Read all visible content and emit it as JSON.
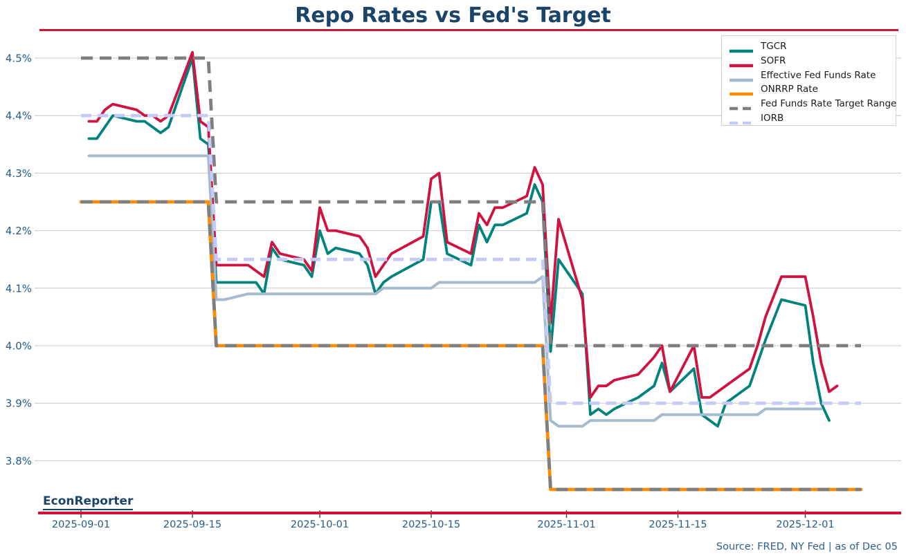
{
  "title": "Repo Rates vs Fed's Target",
  "branding": "EconReporter",
  "source_note": "Source: FRED, NY Fed | as of Dec 05",
  "colors": {
    "title": "#1b4469",
    "accent_red": "#d01335",
    "tick_label": "#265a87",
    "axis_tick": "#3d3d3d",
    "grid": "#c9c9c9",
    "legend_border": "#d2d2d2",
    "legend_text": "#1a1a1a",
    "source_text": "#2d5f8e",
    "brand_text": "#1b4469"
  },
  "chart_data": {
    "type": "line",
    "title": "Repo Rates vs Fed's Target",
    "xlabel": "",
    "ylabel": "",
    "grid": true,
    "legend_position": "top-right",
    "x_axis": {
      "epoch": "2025-09-01",
      "range": [
        "2025-08-28",
        "2025-12-10"
      ],
      "ticks": [
        {
          "date": "2025-09-01",
          "label": "2025-09-01"
        },
        {
          "date": "2025-09-15",
          "label": "2025-09-15"
        },
        {
          "date": "2025-10-01",
          "label": "2025-10-01"
        },
        {
          "date": "2025-10-15",
          "label": "2025-10-15"
        },
        {
          "date": "2025-11-01",
          "label": "2025-11-01"
        },
        {
          "date": "2025-11-15",
          "label": "2025-11-15"
        },
        {
          "date": "2025-12-01",
          "label": "2025-12-01"
        }
      ]
    },
    "y_axis": {
      "unit": "%",
      "range": [
        3.72,
        4.55
      ],
      "tick_values": [
        4.5,
        4.4,
        4.3,
        4.2,
        4.1,
        4.0,
        3.9,
        3.8
      ],
      "tick_labels": [
        "4.5%",
        "4.4%",
        "4.3%",
        "4.2%",
        "4.1%",
        "4.0%",
        "3.9%",
        "3.8%"
      ]
    },
    "series": [
      {
        "name": "TGCR",
        "color": "#00837d",
        "style": "solid",
        "width": 3.8,
        "dash": null,
        "paths": [
          {
            "dates": [
              "2025-09-02",
              "2025-09-03",
              "2025-09-04",
              "2025-09-05",
              "2025-09-08",
              "2025-09-09",
              "2025-09-10",
              "2025-09-11",
              "2025-09-12",
              "2025-09-15",
              "2025-09-16",
              "2025-09-17",
              "2025-09-18",
              "2025-09-19",
              "2025-09-22",
              "2025-09-23",
              "2025-09-24",
              "2025-09-25",
              "2025-09-26",
              "2025-09-29",
              "2025-09-30",
              "2025-10-01",
              "2025-10-02",
              "2025-10-03",
              "2025-10-06",
              "2025-10-07",
              "2025-10-08",
              "2025-10-09",
              "2025-10-10",
              "2025-10-14",
              "2025-10-15",
              "2025-10-16",
              "2025-10-17",
              "2025-10-20",
              "2025-10-21",
              "2025-10-22",
              "2025-10-23",
              "2025-10-24",
              "2025-10-27",
              "2025-10-28",
              "2025-10-29",
              "2025-10-30",
              "2025-10-31",
              "2025-11-03",
              "2025-11-04",
              "2025-11-05",
              "2025-11-06",
              "2025-11-07",
              "2025-11-10",
              "2025-11-12",
              "2025-11-13",
              "2025-11-14",
              "2025-11-17",
              "2025-11-18",
              "2025-11-19",
              "2025-11-20",
              "2025-11-21",
              "2025-11-24",
              "2025-11-25",
              "2025-11-26",
              "2025-11-28",
              "2025-12-01",
              "2025-12-02",
              "2025-12-03",
              "2025-12-04"
            ],
            "values": [
              4.36,
              4.36,
              4.38,
              4.4,
              4.39,
              4.39,
              4.38,
              4.37,
              4.38,
              4.5,
              4.36,
              4.35,
              4.11,
              4.11,
              4.11,
              4.11,
              4.09,
              4.17,
              4.15,
              4.14,
              4.12,
              4.2,
              4.16,
              4.17,
              4.16,
              4.14,
              4.09,
              4.11,
              4.12,
              4.15,
              4.25,
              4.25,
              4.16,
              4.14,
              4.21,
              4.18,
              4.21,
              4.21,
              4.23,
              4.28,
              4.25,
              3.99,
              4.15,
              4.09,
              3.88,
              3.89,
              3.88,
              3.89,
              3.91,
              3.93,
              3.97,
              3.92,
              3.96,
              3.88,
              3.87,
              3.86,
              3.9,
              3.93,
              3.97,
              4.01,
              4.08,
              4.07,
              3.97,
              3.9,
              3.87
            ]
          }
        ]
      },
      {
        "name": "SOFR",
        "color": "#cf1240",
        "style": "solid",
        "width": 3.8,
        "dash": null,
        "paths": [
          {
            "dates": [
              "2025-09-02",
              "2025-09-03",
              "2025-09-04",
              "2025-09-05",
              "2025-09-08",
              "2025-09-09",
              "2025-09-10",
              "2025-09-11",
              "2025-09-12",
              "2025-09-15",
              "2025-09-16",
              "2025-09-17",
              "2025-09-18",
              "2025-09-19",
              "2025-09-22",
              "2025-09-23",
              "2025-09-24",
              "2025-09-25",
              "2025-09-26",
              "2025-09-29",
              "2025-09-30",
              "2025-10-01",
              "2025-10-02",
              "2025-10-03",
              "2025-10-06",
              "2025-10-07",
              "2025-10-08",
              "2025-10-09",
              "2025-10-10",
              "2025-10-14",
              "2025-10-15",
              "2025-10-16",
              "2025-10-17",
              "2025-10-20",
              "2025-10-21",
              "2025-10-22",
              "2025-10-23",
              "2025-10-24",
              "2025-10-27",
              "2025-10-28",
              "2025-10-29",
              "2025-10-30",
              "2025-10-31",
              "2025-11-03",
              "2025-11-04",
              "2025-11-05",
              "2025-11-06",
              "2025-11-07",
              "2025-11-10",
              "2025-11-12",
              "2025-11-13",
              "2025-11-14",
              "2025-11-17",
              "2025-11-18",
              "2025-11-19",
              "2025-11-20",
              "2025-11-21",
              "2025-11-24",
              "2025-11-25",
              "2025-11-26",
              "2025-11-28",
              "2025-12-01",
              "2025-12-02",
              "2025-12-03",
              "2025-12-04",
              "2025-12-05"
            ],
            "values": [
              4.39,
              4.39,
              4.41,
              4.42,
              4.41,
              4.4,
              4.4,
              4.39,
              4.4,
              4.51,
              4.39,
              4.38,
              4.14,
              4.14,
              4.14,
              4.13,
              4.12,
              4.18,
              4.16,
              4.15,
              4.13,
              4.24,
              4.2,
              4.2,
              4.19,
              4.17,
              4.12,
              4.14,
              4.16,
              4.19,
              4.29,
              4.3,
              4.18,
              4.16,
              4.23,
              4.21,
              4.24,
              4.24,
              4.26,
              4.31,
              4.28,
              4.04,
              4.22,
              4.08,
              3.91,
              3.93,
              3.93,
              3.94,
              3.95,
              3.98,
              4.0,
              3.92,
              4.0,
              3.91,
              3.91,
              3.92,
              3.93,
              3.96,
              4.0,
              4.05,
              4.12,
              4.12,
              4.05,
              3.97,
              3.92,
              3.93
            ]
          }
        ]
      },
      {
        "name": "Effective Fed Funds Rate",
        "color": "#a5bacc",
        "style": "solid",
        "width": 4,
        "dash": null,
        "paths": [
          {
            "dates": [
              "2025-09-02",
              "2025-09-03",
              "2025-09-04",
              "2025-09-05",
              "2025-09-08",
              "2025-09-09",
              "2025-09-10",
              "2025-09-11",
              "2025-09-12",
              "2025-09-15",
              "2025-09-16",
              "2025-09-17",
              "2025-09-18",
              "2025-09-19",
              "2025-09-22",
              "2025-09-23",
              "2025-09-24",
              "2025-09-25",
              "2025-09-26",
              "2025-09-29",
              "2025-09-30",
              "2025-10-01",
              "2025-10-02",
              "2025-10-03",
              "2025-10-06",
              "2025-10-07",
              "2025-10-08",
              "2025-10-09",
              "2025-10-10",
              "2025-10-14",
              "2025-10-15",
              "2025-10-16",
              "2025-10-17",
              "2025-10-20",
              "2025-10-21",
              "2025-10-22",
              "2025-10-23",
              "2025-10-24",
              "2025-10-27",
              "2025-10-28",
              "2025-10-29",
              "2025-10-30",
              "2025-10-31",
              "2025-11-03",
              "2025-11-04",
              "2025-11-05",
              "2025-11-06",
              "2025-11-07",
              "2025-11-10",
              "2025-11-12",
              "2025-11-13",
              "2025-11-14",
              "2025-11-17",
              "2025-11-18",
              "2025-11-19",
              "2025-11-20",
              "2025-11-21",
              "2025-11-24",
              "2025-11-25",
              "2025-11-26",
              "2025-11-28",
              "2025-12-01",
              "2025-12-02",
              "2025-12-03"
            ],
            "values": [
              4.33,
              4.33,
              4.33,
              4.33,
              4.33,
              4.33,
              4.33,
              4.33,
              4.33,
              4.33,
              4.33,
              4.33,
              4.08,
              4.08,
              4.09,
              4.09,
              4.09,
              4.09,
              4.09,
              4.09,
              4.09,
              4.09,
              4.09,
              4.09,
              4.09,
              4.09,
              4.09,
              4.1,
              4.1,
              4.1,
              4.1,
              4.11,
              4.11,
              4.11,
              4.11,
              4.11,
              4.11,
              4.11,
              4.11,
              4.11,
              4.12,
              3.87,
              3.86,
              3.86,
              3.87,
              3.87,
              3.87,
              3.87,
              3.87,
              3.87,
              3.88,
              3.88,
              3.88,
              3.88,
              3.88,
              3.88,
              3.88,
              3.88,
              3.88,
              3.89,
              3.89,
              3.89,
              3.89,
              3.89
            ]
          }
        ]
      },
      {
        "name": "ONRRP Rate",
        "color": "#ff8c00",
        "style": "solid",
        "width": 4.8,
        "dash": null,
        "paths": [
          {
            "dates": [
              "2025-09-01",
              "2025-09-17",
              "2025-09-18",
              "2025-10-29",
              "2025-10-30",
              "2025-12-08"
            ],
            "values": [
              4.25,
              4.25,
              4.0,
              4.0,
              3.75,
              3.75
            ]
          }
        ]
      },
      {
        "name": "Fed Funds Rate Target Range",
        "color": "#7f7f7f",
        "style": "dashed",
        "width": 4.8,
        "dash": "17 10",
        "paths": [
          {
            "dates": [
              "2025-09-01",
              "2025-09-17",
              "2025-09-18",
              "2025-10-29",
              "2025-10-30",
              "2025-12-08"
            ],
            "values": [
              4.5,
              4.5,
              4.25,
              4.25,
              4.0,
              4.0
            ]
          },
          {
            "dates": [
              "2025-09-01",
              "2025-09-17",
              "2025-09-18",
              "2025-10-29",
              "2025-10-30",
              "2025-12-08"
            ],
            "values": [
              4.25,
              4.25,
              4.0,
              4.0,
              3.75,
              3.75
            ]
          }
        ]
      },
      {
        "name": "IORB",
        "color": "#c5cbf7",
        "style": "dashed",
        "width": 4.8,
        "dash": "15 9",
        "paths": [
          {
            "dates": [
              "2025-09-01",
              "2025-09-17",
              "2025-09-18",
              "2025-10-29",
              "2025-10-30",
              "2025-12-08"
            ],
            "values": [
              4.4,
              4.4,
              4.15,
              4.15,
              3.9,
              3.9
            ]
          }
        ]
      }
    ]
  }
}
